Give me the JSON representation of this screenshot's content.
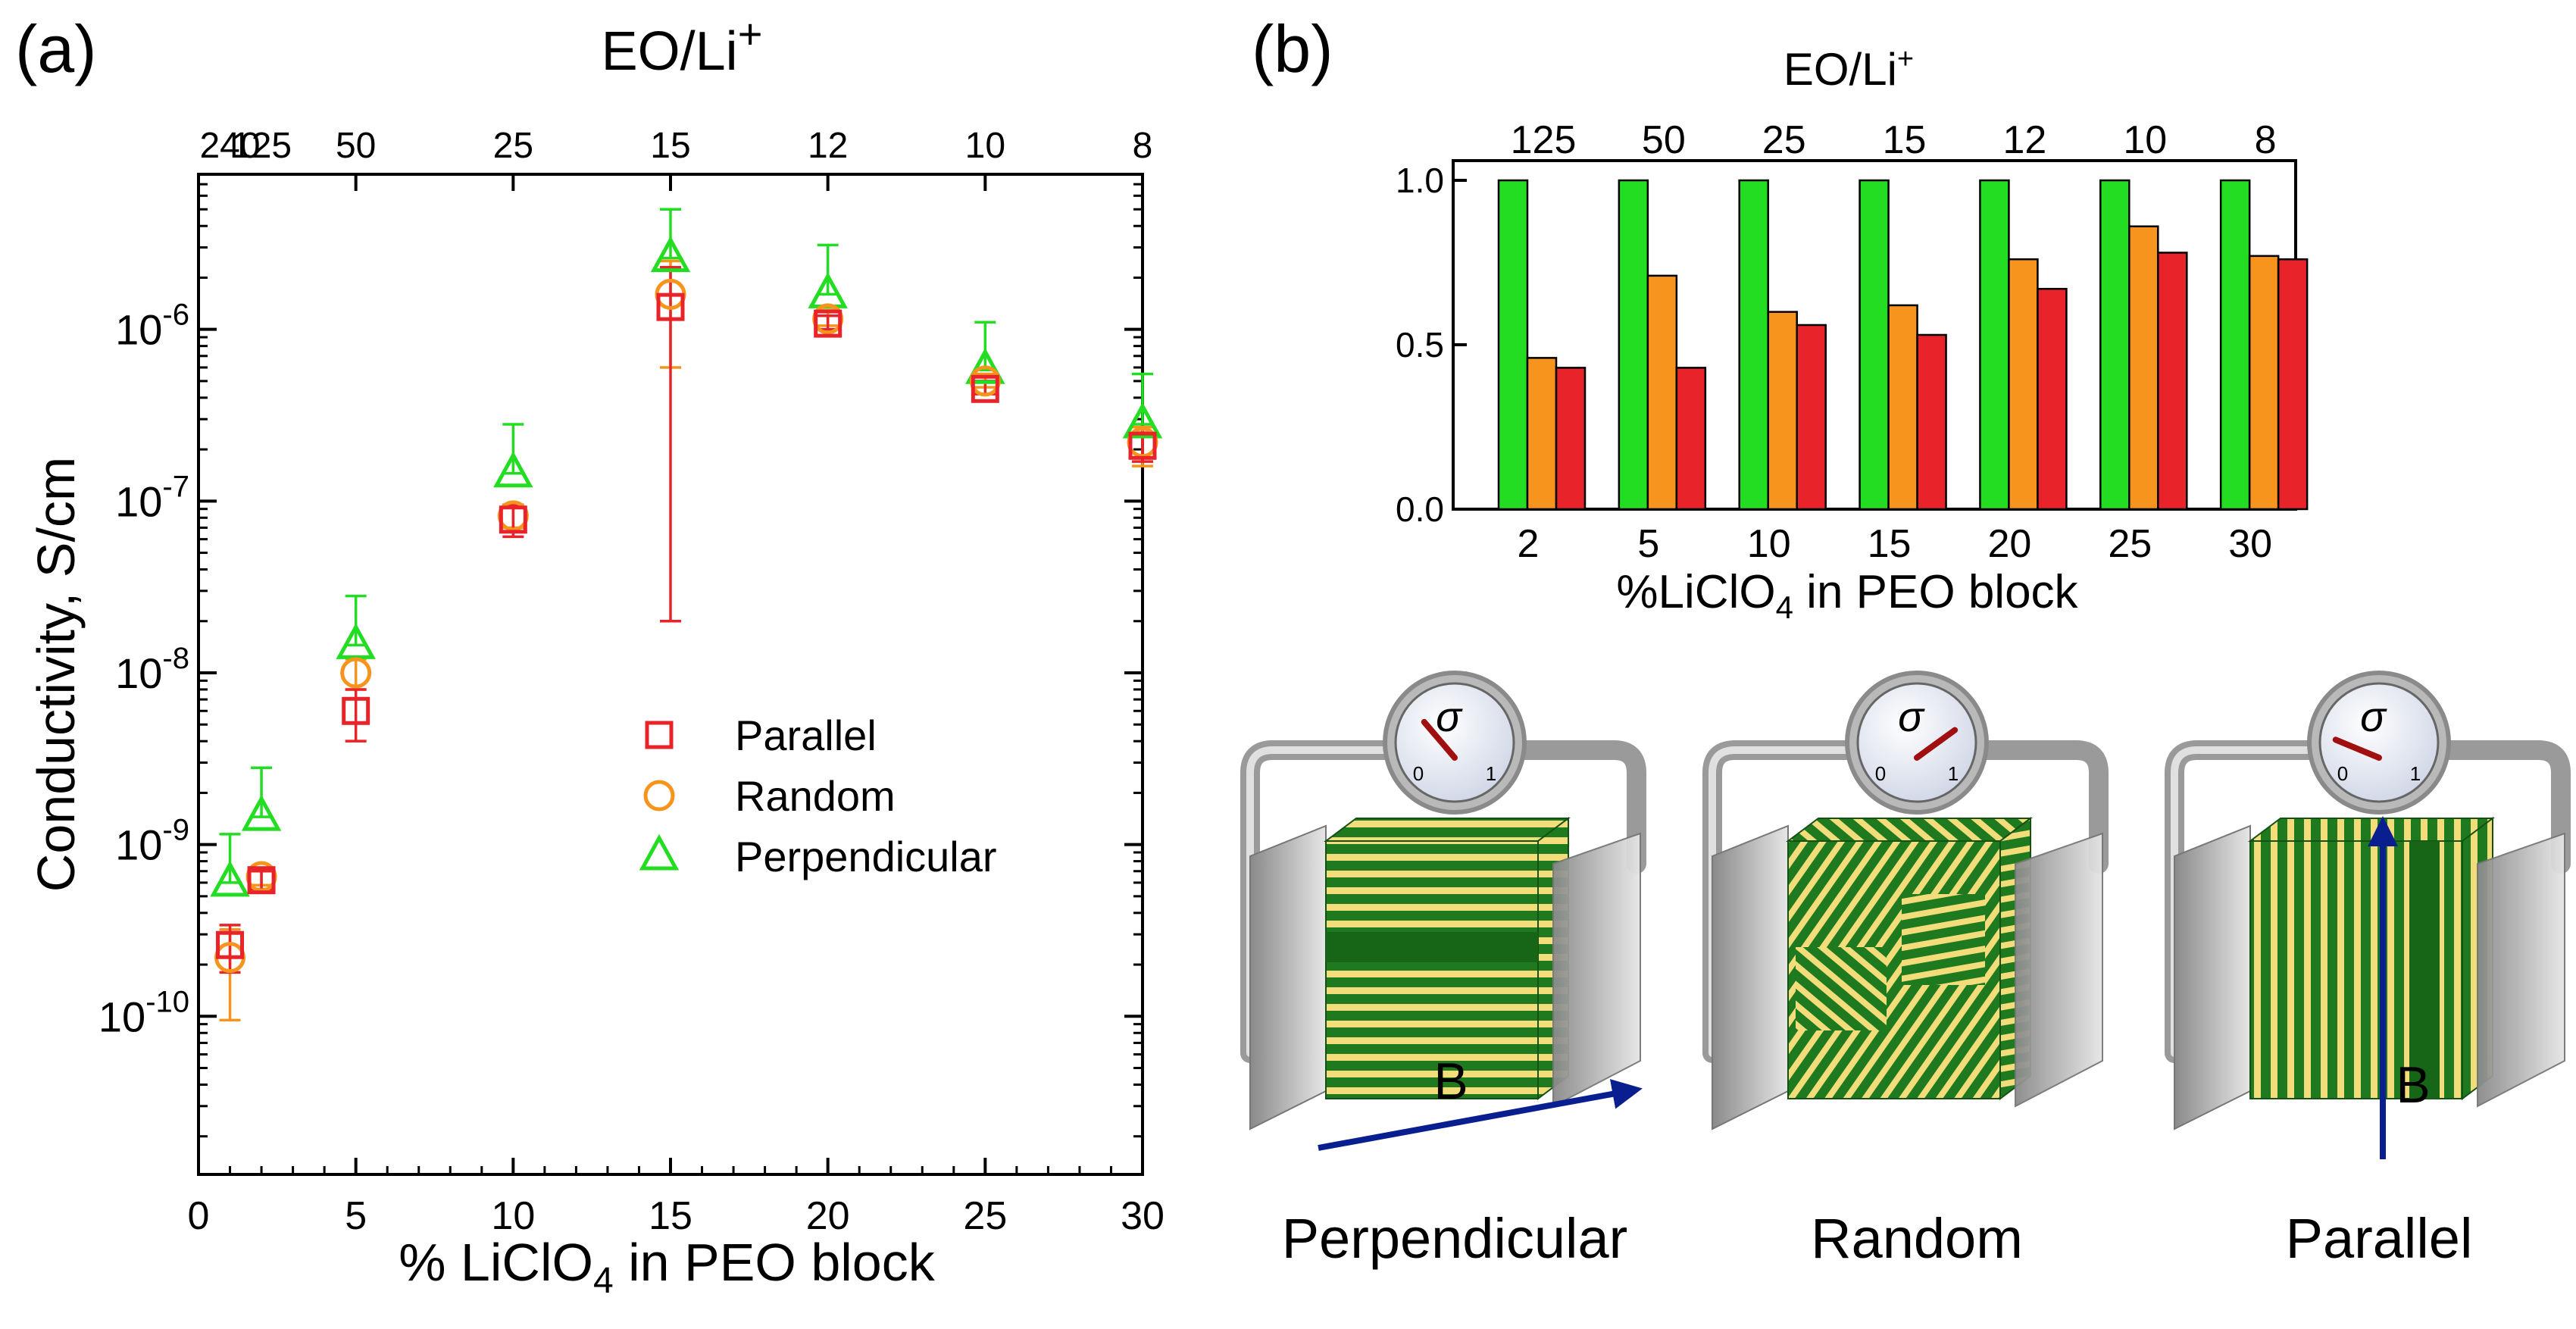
{
  "panel_a": {
    "label": "(a)",
    "top_axis_title": "EO/Li",
    "top_axis_title_sup": "+",
    "xlabel_prefix": "% LiClO",
    "xlabel_sub": "4",
    "xlabel_suffix": " in PEO block",
    "ylabel": "Conductivity, S/cm"
  },
  "panel_b": {
    "label": "(b)",
    "top_axis_title": "EO/Li",
    "top_axis_title_sup": "+",
    "xlabel_prefix": "%LiClO",
    "xlabel_sub": "4",
    "xlabel_suffix": " in PEO block"
  },
  "illustrations": [
    {
      "caption": "Perpendicular",
      "field_label": "B",
      "dial_symbol": "σ",
      "dial_min": "0",
      "dial_max": "1",
      "needle": 0.35
    },
    {
      "caption": "Random",
      "field_label": "",
      "dial_symbol": "σ",
      "dial_min": "0",
      "dial_max": "1",
      "needle": 0.7
    },
    {
      "caption": "Parallel",
      "field_label": "B",
      "dial_symbol": "σ",
      "dial_min": "0",
      "dial_max": "1",
      "needle": 0.25
    }
  ],
  "colors": {
    "parallel": "#e8232a",
    "random": "#f7941d",
    "perpendicular": "#22dd22"
  },
  "chart_data": [
    {
      "type": "scatter",
      "title": "",
      "xlabel": "% LiClO4 in PEO block",
      "ylabel": "Conductivity, S/cm",
      "yscale": "log",
      "xlim": [
        0,
        30
      ],
      "ylim": [
        1.2e-11,
        8e-06
      ],
      "x_ticks": [
        0,
        5,
        10,
        15,
        20,
        25,
        30
      ],
      "y_ticks": [
        1e-10,
        1e-09,
        1e-08,
        1e-07,
        1e-06
      ],
      "y_tick_labels": [
        {
          "base": "10",
          "exp": "-10"
        },
        {
          "base": "10",
          "exp": "-9"
        },
        {
          "base": "10",
          "exp": "-8"
        },
        {
          "base": "10",
          "exp": "-7"
        },
        {
          "base": "10",
          "exp": "-6"
        }
      ],
      "top_axis": {
        "title": "EO/Li+",
        "ticks": [
          {
            "x": 1,
            "label": "240"
          },
          {
            "x": 2,
            "label": "125"
          },
          {
            "x": 5,
            "label": "50"
          },
          {
            "x": 10,
            "label": "25"
          },
          {
            "x": 15,
            "label": "15"
          },
          {
            "x": 20,
            "label": "12"
          },
          {
            "x": 25,
            "label": "10"
          },
          {
            "x": 30,
            "label": "8"
          }
        ]
      },
      "legend": "center-right",
      "series": [
        {
          "name": "Parallel",
          "marker": "square",
          "color": "#e8232a",
          "x": [
            1,
            2,
            5,
            10,
            15,
            20,
            25,
            30
          ],
          "y": [
            2.6e-10,
            6.2e-10,
            6e-09,
            7.8e-08,
            1.35e-06,
            1.08e-06,
            4.5e-07,
            2.1e-07
          ],
          "err_low": [
            1.8e-10,
            5.5e-10,
            4e-09,
            6.2e-08,
            2e-08,
            1e-06,
            4.2e-07,
            1.7e-07
          ],
          "err_high": [
            3.4e-10,
            7e-10,
            8e-09,
            9.5e-08,
            2.3e-06,
            1.2e-06,
            5e-07,
            2.5e-07
          ]
        },
        {
          "name": "Random",
          "marker": "circle",
          "color": "#f7941d",
          "x": [
            1,
            2,
            5,
            10,
            15,
            20,
            25,
            30
          ],
          "y": [
            2.2e-10,
            6.5e-10,
            1e-08,
            8.2e-08,
            1.6e-06,
            1.15e-06,
            5e-07,
            2.2e-07
          ],
          "err_low": [
            9.5e-11,
            5.8e-10,
            8e-09,
            7e-08,
            6e-07,
            1.05e-06,
            4.6e-07,
            1.6e-07
          ],
          "err_high": [
            3.2e-10,
            7.2e-10,
            1.2e-08,
            9.5e-08,
            2.5e-06,
            1.3e-06,
            5.5e-07,
            2.7e-07
          ]
        },
        {
          "name": "Perpendicular",
          "marker": "triangle",
          "color": "#22dd22",
          "x": [
            1,
            2,
            5,
            10,
            15,
            20,
            25,
            30
          ],
          "y": [
            6e-10,
            1.45e-09,
            1.45e-08,
            1.45e-07,
            2.6e-06,
            1.6e-06,
            5.8e-07,
            2.8e-07
          ],
          "err_low": [
            6e-10,
            1.45e-09,
            1.45e-08,
            1.45e-07,
            2.6e-06,
            1.6e-06,
            5.8e-07,
            2.8e-07
          ],
          "err_high": [
            1.15e-09,
            2.8e-09,
            2.8e-08,
            2.8e-07,
            5e-06,
            3.1e-06,
            1.1e-06,
            5.5e-07
          ]
        }
      ]
    },
    {
      "type": "bar",
      "title": "",
      "xlabel": "%LiClO4 in PEO block",
      "ylabel": "",
      "ylim": [
        0,
        1.0
      ],
      "y_ticks": [
        0.0,
        0.5,
        1.0
      ],
      "y_tick_labels": [
        "0.0",
        "0.5",
        "1.0"
      ],
      "categories": [
        "2",
        "5",
        "10",
        "15",
        "20",
        "25",
        "30"
      ],
      "top_axis": {
        "title": "EO/Li+",
        "labels": [
          "125",
          "50",
          "25",
          "15",
          "12",
          "10",
          "8"
        ]
      },
      "series": [
        {
          "name": "Perpendicular",
          "color": "#22dd22",
          "values": [
            1.0,
            1.0,
            1.0,
            1.0,
            1.0,
            1.0,
            1.0
          ]
        },
        {
          "name": "Random",
          "color": "#f7941d",
          "values": [
            0.46,
            0.71,
            0.6,
            0.62,
            0.76,
            0.86,
            0.77
          ]
        },
        {
          "name": "Parallel",
          "color": "#e8232a",
          "values": [
            0.43,
            0.43,
            0.56,
            0.53,
            0.67,
            0.78,
            0.76
          ]
        }
      ]
    }
  ]
}
